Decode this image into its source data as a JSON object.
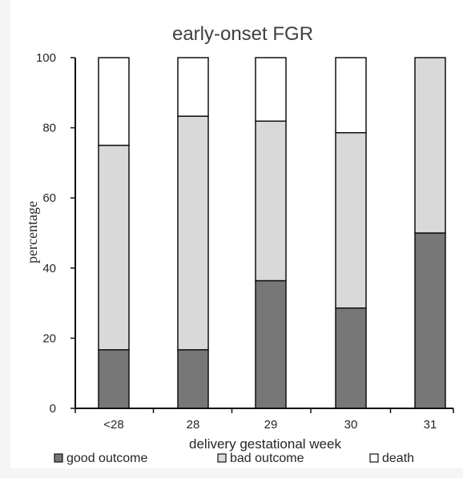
{
  "chart_data": {
    "type": "bar",
    "stacked": true,
    "title": "early-onset FGR",
    "xlabel": "delivery gestational week",
    "ylabel": "percentage",
    "categories": [
      "<28",
      "28",
      "29",
      "30",
      "31"
    ],
    "ylim": [
      0,
      100
    ],
    "yticks": [
      "0",
      "20",
      "40",
      "60",
      "80",
      "100"
    ],
    "series": [
      {
        "name": "good outcome",
        "color": "#777777",
        "values": [
          16.7,
          16.7,
          36.4,
          28.6,
          50.0
        ]
      },
      {
        "name": "bad outcome",
        "color": "#d9d9d9",
        "values": [
          58.3,
          66.6,
          45.5,
          50.0,
          50.0
        ]
      },
      {
        "name": "death",
        "color": "#ffffff",
        "values": [
          25.0,
          16.7,
          18.1,
          21.4,
          0.0
        ]
      }
    ],
    "legend_position": "bottom",
    "grid": false
  }
}
